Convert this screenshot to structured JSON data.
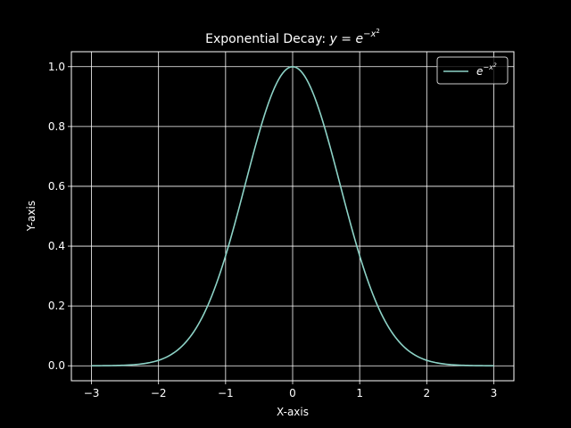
{
  "chart_data": {
    "type": "line",
    "title_prefix": "Exponential Decay: ",
    "title_y": "y",
    "title_eq": " = ",
    "title_e": "e",
    "title_exp": "−x",
    "title_exp_sq": "2",
    "xlabel": "X-axis",
    "ylabel": "Y-axis",
    "xlim": [
      -3.3,
      3.3
    ],
    "ylim": [
      -0.05,
      1.05
    ],
    "x_ticks": [
      -3,
      -2,
      -1,
      0,
      1,
      2,
      3
    ],
    "x_tick_labels": [
      "−3",
      "−2",
      "−1",
      "0",
      "1",
      "2",
      "3"
    ],
    "y_ticks": [
      0.0,
      0.2,
      0.4,
      0.6,
      0.8,
      1.0
    ],
    "y_tick_labels": [
      "0.0",
      "0.2",
      "0.4",
      "0.6",
      "0.8",
      "1.0"
    ],
    "grid": true,
    "legend_position": "top-right",
    "series": [
      {
        "name_e": "e",
        "name_exp": "−x",
        "name_exp_sq": "2",
        "color": "#8dd3c7",
        "function": "exp(-x^2)",
        "x_range": [
          -3,
          3
        ],
        "x": [
          -3.0,
          -2.8,
          -2.6,
          -2.4,
          -2.2,
          -2.0,
          -1.8,
          -1.6,
          -1.4,
          -1.2,
          -1.0,
          -0.8,
          -0.6,
          -0.4,
          -0.2,
          0.0,
          0.2,
          0.4,
          0.6,
          0.8,
          1.0,
          1.2,
          1.4,
          1.6,
          1.8,
          2.0,
          2.2,
          2.4,
          2.6,
          2.8,
          3.0
        ],
        "y": [
          0.0001,
          0.0004,
          0.0012,
          0.0032,
          0.0079,
          0.0183,
          0.0392,
          0.0773,
          0.1409,
          0.2369,
          0.3679,
          0.5273,
          0.6977,
          0.8521,
          0.9608,
          1.0,
          0.9608,
          0.8521,
          0.6977,
          0.5273,
          0.3679,
          0.2369,
          0.1409,
          0.0773,
          0.0392,
          0.0183,
          0.0079,
          0.0032,
          0.0012,
          0.0004,
          0.0001
        ]
      }
    ]
  },
  "colors": {
    "background": "#000000",
    "foreground": "#ffffff",
    "series": "#8dd3c7"
  }
}
